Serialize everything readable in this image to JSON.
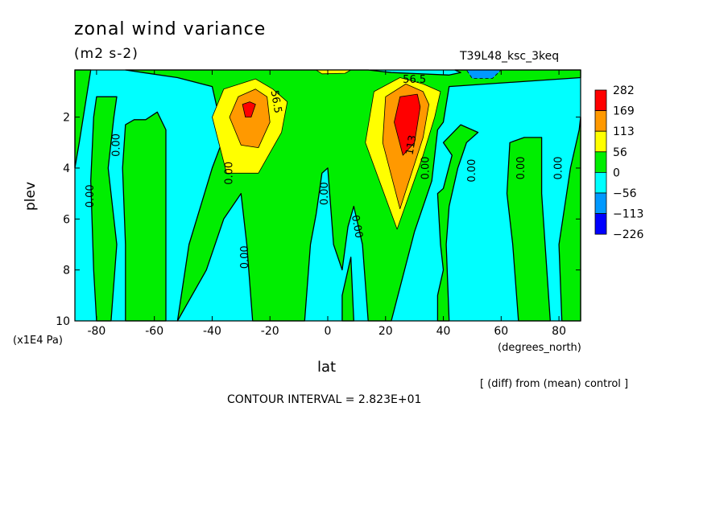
{
  "chart_data": {
    "type": "heatmap",
    "title": "zonal wind variance",
    "units": "(m2 s-2)",
    "experiment": "T39L48_ksc_3keq",
    "xlabel": "lat",
    "x_units": "(degrees_north)",
    "ylabel": "plev",
    "y_units": "(x1E4 Pa)",
    "x_ticks": [
      -80,
      -60,
      -40,
      -20,
      0,
      20,
      40,
      60,
      80
    ],
    "y_ticks": [
      2,
      4,
      6,
      8,
      10
    ],
    "xlim": [
      -87.5,
      87.5
    ],
    "ylim": [
      10,
      0.15
    ],
    "footer_note": "[ (diff) from (mean) control ]",
    "contour_interval": "CONTOUR INTERVAL = 2.823E+01",
    "legend": {
      "labels": [
        "282",
        "169",
        "113",
        "56",
        "0",
        "-56",
        "-113",
        "-226"
      ],
      "colors": [
        "#ff0000",
        "#ff9900",
        "#ffff00",
        "#00ee00",
        "#00ffff",
        "#0099ff",
        "#0000ff"
      ]
    },
    "contour_labels": [
      {
        "text": "56.5",
        "lat": -18,
        "p": 1.4,
        "angle": 80
      },
      {
        "text": "56.5",
        "lat": 30,
        "p": 0.55,
        "angle": 0
      },
      {
        "text": "113",
        "lat": 29,
        "p": 3.1,
        "angle": -80
      },
      {
        "text": "0.00",
        "lat": -73,
        "p": 3.1,
        "angle": -90
      },
      {
        "text": "0.00",
        "lat": -82,
        "p": 5.1,
        "angle": -90
      },
      {
        "text": "0.00",
        "lat": -34,
        "p": 4.2,
        "angle": -90
      },
      {
        "text": "0.00",
        "lat": -28.5,
        "p": 7.5,
        "angle": -90
      },
      {
        "text": "0.00",
        "lat": -1,
        "p": 5.0,
        "angle": -90
      },
      {
        "text": "0.00",
        "lat": 10,
        "p": 6.3,
        "angle": 80
      },
      {
        "text": "0.00",
        "lat": 34,
        "p": 4.0,
        "angle": -90
      },
      {
        "text": "0.00",
        "lat": 50,
        "p": 4.1,
        "angle": -90
      },
      {
        "text": "0.00",
        "lat": 67,
        "p": 4.0,
        "angle": -90
      },
      {
        "text": "0.00",
        "lat": 80,
        "p": 4.0,
        "angle": -90
      }
    ],
    "regions": {
      "green": [
        [
          [
            -87.5,
            0.15
          ],
          [
            -82,
            0.15
          ],
          [
            -86,
            3
          ],
          [
            -87.5,
            4
          ]
        ],
        [
          [
            -80,
            10
          ],
          [
            -81,
            8
          ],
          [
            -82,
            4.5
          ],
          [
            -81,
            2
          ],
          [
            -80,
            1.2
          ],
          [
            -73,
            1.2
          ],
          [
            -74,
            2
          ],
          [
            -76,
            4
          ],
          [
            -73,
            7
          ],
          [
            -75,
            10
          ]
        ],
        [
          [
            -70,
            10
          ],
          [
            -70,
            7
          ],
          [
            -71,
            4
          ],
          [
            -70,
            2.3
          ],
          [
            -67,
            2.1
          ],
          [
            -63,
            2.1
          ],
          [
            -59,
            1.8
          ],
          [
            -56,
            2.5
          ],
          [
            -56,
            10
          ]
        ],
        [
          [
            -52,
            10
          ],
          [
            -48,
            7
          ],
          [
            -40,
            4
          ],
          [
            -36,
            2.8
          ],
          [
            -40,
            0.8
          ],
          [
            -52,
            0.45
          ],
          [
            -64,
            0.25
          ],
          [
            -70,
            0.15
          ],
          [
            -20,
            0.15
          ],
          [
            14,
            0.15
          ],
          [
            22,
            0.25
          ],
          [
            42,
            0.35
          ],
          [
            46,
            0.25
          ],
          [
            44,
            0.15
          ],
          [
            87.5,
            0.15
          ],
          [
            87.5,
            0.45
          ],
          [
            42,
            0.8
          ],
          [
            40,
            2.2
          ],
          [
            38,
            2.5
          ],
          [
            36,
            4.5
          ],
          [
            30,
            6.5
          ],
          [
            22,
            10
          ],
          [
            14,
            10
          ],
          [
            12,
            7
          ],
          [
            9,
            5.5
          ],
          [
            7,
            6.3
          ],
          [
            5,
            8
          ],
          [
            2,
            7
          ],
          [
            0,
            4
          ],
          [
            -2,
            4.2
          ],
          [
            -4,
            5.8
          ],
          [
            -6,
            7
          ],
          [
            -8,
            10
          ],
          [
            -26,
            10
          ],
          [
            -28,
            7
          ],
          [
            -30,
            5
          ],
          [
            -36,
            6
          ],
          [
            -42,
            8
          ]
        ],
        [
          [
            5,
            10
          ],
          [
            5,
            9
          ],
          [
            8,
            7.5
          ],
          [
            9,
            10
          ]
        ],
        [
          [
            38,
            10
          ],
          [
            38,
            9
          ],
          [
            40,
            8
          ],
          [
            39,
            7
          ],
          [
            38,
            5
          ],
          [
            40,
            4.8
          ],
          [
            43,
            3.5
          ],
          [
            40,
            3.0
          ],
          [
            46,
            2.3
          ],
          [
            52,
            2.6
          ],
          [
            48,
            3.0
          ],
          [
            45,
            4.0
          ],
          [
            42,
            5.5
          ],
          [
            41,
            7
          ],
          [
            42,
            10
          ]
        ],
        [
          [
            66,
            10
          ],
          [
            64,
            7
          ],
          [
            62,
            5
          ],
          [
            63,
            3.0
          ],
          [
            68,
            2.8
          ],
          [
            74,
            2.8
          ],
          [
            74,
            5
          ],
          [
            77,
            10
          ]
        ],
        [
          [
            81,
            10
          ],
          [
            80,
            7
          ],
          [
            84,
            4
          ],
          [
            87,
            2.5
          ],
          [
            87.5,
            2
          ],
          [
            87.5,
            10
          ]
        ]
      ],
      "yellow": [
        [
          [
            -35,
            4.2
          ],
          [
            -40,
            2.0
          ],
          [
            -36,
            0.9
          ],
          [
            -25,
            0.5
          ],
          [
            -19,
            0.9
          ],
          [
            -14,
            1.4
          ],
          [
            -16,
            2.6
          ],
          [
            -24,
            4.2
          ]
        ],
        [
          [
            24,
            6.4
          ],
          [
            13,
            3.0
          ],
          [
            16,
            1.0
          ],
          [
            25,
            0.45
          ],
          [
            33,
            0.7
          ],
          [
            39,
            1.0
          ],
          [
            37,
            2.0
          ],
          [
            33,
            3.5
          ]
        ],
        [
          [
            -4,
            0.15
          ],
          [
            8,
            0.15
          ],
          [
            6,
            0.28
          ],
          [
            -2,
            0.3
          ]
        ]
      ],
      "orange": [
        [
          [
            -30,
            3.1
          ],
          [
            -34,
            2.0
          ],
          [
            -31,
            1.2
          ],
          [
            -25,
            0.9
          ],
          [
            -21,
            1.2
          ],
          [
            -20,
            2.2
          ],
          [
            -24,
            3.2
          ]
        ],
        [
          [
            25,
            5.6
          ],
          [
            19,
            3.0
          ],
          [
            20,
            1.2
          ],
          [
            27,
            0.7
          ],
          [
            33,
            1.0
          ],
          [
            35,
            1.5
          ],
          [
            33,
            2.8
          ]
        ]
      ],
      "red": [
        [
          [
            -28.5,
            2.0
          ],
          [
            -29.5,
            1.5
          ],
          [
            -27,
            1.4
          ],
          [
            -25,
            1.5
          ],
          [
            -26.5,
            2.0
          ]
        ],
        [
          [
            26,
            3.5
          ],
          [
            23,
            2.2
          ],
          [
            25,
            1.2
          ],
          [
            31,
            1.1
          ],
          [
            32,
            1.6
          ],
          [
            30,
            3.0
          ]
        ]
      ],
      "blue": [
        [
          [
            48,
            0.15
          ],
          [
            60,
            0.15
          ],
          [
            57,
            0.48
          ],
          [
            50,
            0.48
          ]
        ]
      ]
    }
  }
}
